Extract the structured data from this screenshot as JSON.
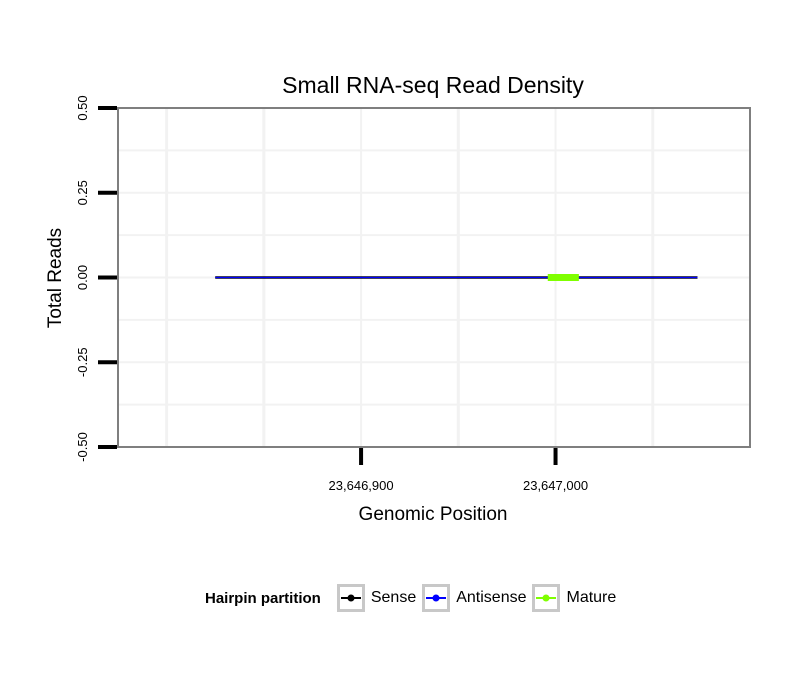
{
  "chart_data": {
    "type": "line",
    "title": "Small RNA-seq Read Density",
    "xlabel": "Genomic Position",
    "ylabel": "Total Reads",
    "xlim": [
      23646775,
      23647100
    ],
    "ylim": [
      -0.5,
      0.5
    ],
    "x_ticks": [
      23646900,
      23647000
    ],
    "x_tick_labels": [
      "23,646,900",
      "23,647,000"
    ],
    "y_ticks": [
      -0.5,
      -0.25,
      0,
      0.25,
      0.5
    ],
    "y_tick_labels": [
      "-0.50",
      "-0.25",
      "0.00",
      "0.25",
      "0.50"
    ],
    "grid": true,
    "legend_position": "bottom",
    "series": [
      {
        "name": "Sense",
        "color": "#000000",
        "x": [
          23646825,
          23647073
        ],
        "y": [
          0,
          0
        ]
      },
      {
        "name": "Antisense",
        "color": "#0000ff",
        "x": [
          23646825,
          23647073
        ],
        "y": [
          0,
          0
        ]
      },
      {
        "name": "Mature",
        "color": "#7fff00",
        "x": [
          23646996,
          23647012
        ],
        "y": [
          0,
          0
        ]
      }
    ]
  },
  "legend": {
    "title": "Hairpin partition",
    "items": [
      {
        "label": "Sense",
        "color": "#000000"
      },
      {
        "label": "Antisense",
        "color": "#0000ff"
      },
      {
        "label": "Mature",
        "color": "#7fff00"
      }
    ]
  }
}
